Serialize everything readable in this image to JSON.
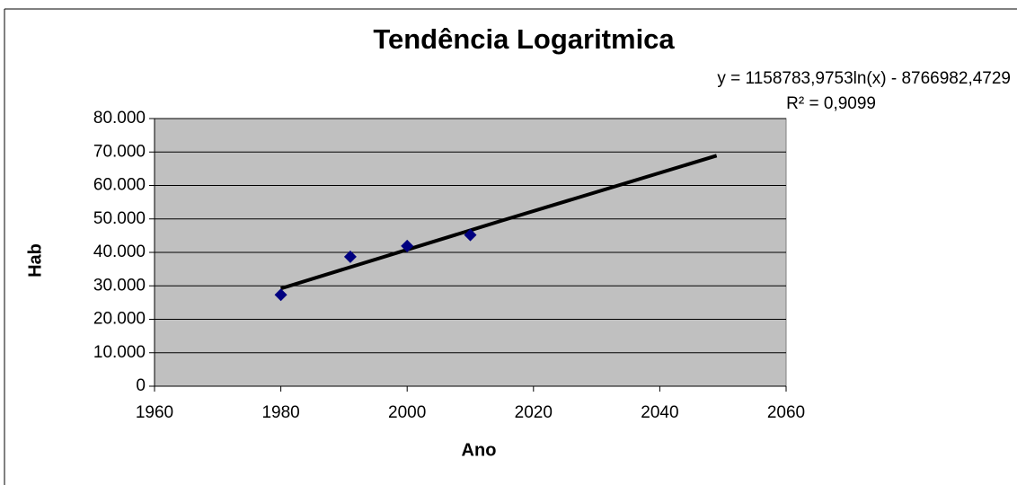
{
  "chart_data": {
    "type": "scatter",
    "title": "Tendência Logaritmica",
    "x_label": "Ano",
    "y_label": "Hab",
    "annotations": [
      "y = 1158783,9753ln(x)  - 8766982,4729",
      "R² = 0,9099"
    ],
    "series": [
      {
        "x": [
          1980,
          1991,
          2000,
          2010
        ],
        "values": [
          27300,
          38700,
          41900,
          45200
        ],
        "color": "#000080"
      }
    ],
    "trendline": {
      "x": [
        1980,
        2015,
        2049
      ],
      "values": [
        29200,
        49500,
        68900
      ],
      "color": "#000000"
    },
    "xlim": [
      1960,
      2060
    ],
    "xticks": [
      1960,
      1980,
      2000,
      2020,
      2040,
      2060
    ],
    "ylim": [
      0,
      80000
    ],
    "yticks": [
      0,
      {
        "value": 10000,
        "label": "10.000"
      },
      {
        "value": 20000,
        "label": "20.000"
      },
      {
        "value": 30000,
        "label": "30.000"
      },
      {
        "value": 40000,
        "label": "40.000"
      },
      {
        "value": 50000,
        "label": "50.000"
      },
      {
        "value": 60000,
        "label": "60.000"
      },
      {
        "value": 70000,
        "label": "70.000"
      },
      {
        "value": 80000,
        "label": "80.000"
      }
    ],
    "grid": true,
    "plot_background": "#c0c0c0"
  }
}
